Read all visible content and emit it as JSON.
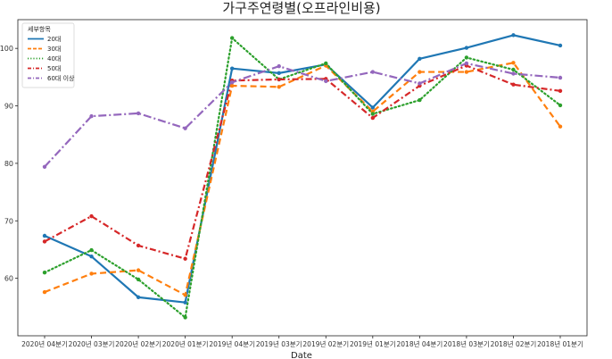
{
  "chart_data": {
    "type": "line",
    "title": "가구주연령별(오프라인비용)",
    "xlabel": "Date",
    "ylabel": "",
    "ylim": [
      50,
      105
    ],
    "yticks": [
      60,
      70,
      80,
      90,
      100
    ],
    "categories": [
      "2020년 04분기",
      "2020년 03분기",
      "2020년 02분기",
      "2020년 01분기",
      "2019년 04분기",
      "2019년 03분기",
      "2019년 02분기",
      "2019년 01분기",
      "2018년 04분기",
      "2018년 03분기",
      "2018년 02분기",
      "2018년 01분기"
    ],
    "legend_title": "세부항목",
    "legend_position": "top-left",
    "grid": false,
    "series": [
      {
        "name": "20대",
        "color": "#1f77b4",
        "dash": "solid",
        "values": [
          67.4,
          63.8,
          56.7,
          55.8,
          96.5,
          95.7,
          97.2,
          89.7,
          98.2,
          100.1,
          102.3,
          100.5
        ]
      },
      {
        "name": "30대",
        "color": "#ff7f0e",
        "dash": "dashed",
        "values": [
          57.6,
          60.8,
          61.4,
          57.1,
          93.5,
          93.3,
          97.0,
          89.0,
          95.9,
          95.9,
          97.5,
          86.4
        ]
      },
      {
        "name": "40대",
        "color": "#2ca02c",
        "dash": "dotted",
        "values": [
          61.0,
          64.9,
          59.8,
          53.2,
          101.8,
          94.6,
          97.4,
          88.6,
          91.0,
          98.4,
          96.3,
          90.1
        ]
      },
      {
        "name": "50대",
        "color": "#d62728",
        "dash": "dashdot",
        "values": [
          66.4,
          70.8,
          65.7,
          63.4,
          94.4,
          94.6,
          94.7,
          87.9,
          93.5,
          97.0,
          93.7,
          92.6
        ]
      },
      {
        "name": "60대 이상",
        "color": "#9467bd",
        "dash": "dashdot2",
        "values": [
          79.4,
          88.2,
          88.7,
          86.1,
          94.1,
          96.9,
          94.3,
          95.9,
          93.9,
          97.4,
          95.6,
          94.9
        ]
      }
    ]
  }
}
